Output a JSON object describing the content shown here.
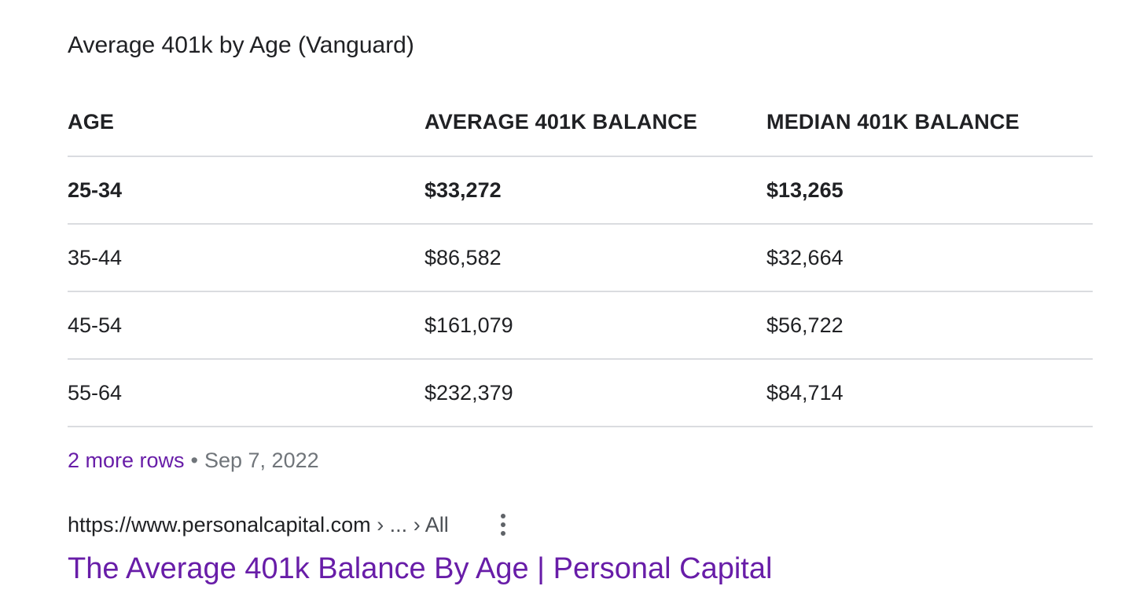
{
  "snippet": {
    "heading": "Average 401k by Age (Vanguard)",
    "table": {
      "headers": [
        "AGE",
        "AVERAGE 401K BALANCE",
        "MEDIAN 401K BALANCE"
      ],
      "rows": [
        [
          "25-34",
          "$33,272",
          "$13,265"
        ],
        [
          "35-44",
          "$86,582",
          "$32,664"
        ],
        [
          "45-54",
          "$161,079",
          "$56,722"
        ],
        [
          "55-64",
          "$232,379",
          "$84,714"
        ]
      ]
    },
    "more_rows_label": "2 more rows",
    "separator": "•",
    "date": "Sep 7, 2022"
  },
  "result": {
    "url": "https://www.personalcapital.com",
    "breadcrumb": " › ... › All",
    "menu_icon": "more-vert-icon",
    "title": "The Average 401k Balance By Age | Personal Capital"
  },
  "colors": {
    "visited_link": "#681da8",
    "meta_gray": "#70757a",
    "divider": "#dadce0",
    "text": "#202124"
  }
}
